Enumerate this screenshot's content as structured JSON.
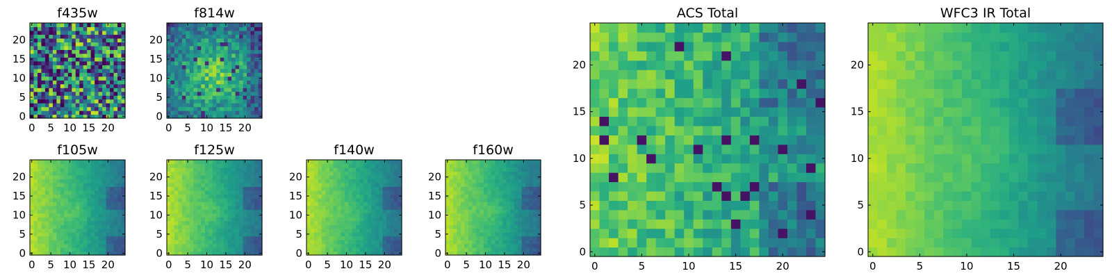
{
  "chart_data": [
    {
      "type": "heatmap",
      "title": "f435w",
      "pattern": "f435w",
      "xlim": [
        0,
        24
      ],
      "ylim": [
        0,
        24
      ],
      "xticks": [
        "0",
        "5",
        "10",
        "15",
        "20"
      ],
      "yticks": [
        "0",
        "5",
        "10",
        "15",
        "20"
      ],
      "colormap": "viridis",
      "grid": false
    },
    {
      "type": "heatmap",
      "title": "f814w",
      "pattern": "f814w",
      "xlim": [
        0,
        24
      ],
      "ylim": [
        0,
        24
      ],
      "xticks": [
        "0",
        "5",
        "10",
        "15",
        "20"
      ],
      "yticks": [
        "0",
        "5",
        "10",
        "15",
        "20"
      ],
      "colormap": "viridis",
      "grid": false
    },
    {
      "type": "heatmap",
      "title": "f105w",
      "pattern": "ir",
      "xlim": [
        0,
        24
      ],
      "ylim": [
        0,
        24
      ],
      "xticks": [
        "0",
        "5",
        "10",
        "15",
        "20"
      ],
      "yticks": [
        "0",
        "5",
        "10",
        "15",
        "20"
      ],
      "colormap": "viridis",
      "grid": false
    },
    {
      "type": "heatmap",
      "title": "f125w",
      "pattern": "ir",
      "xlim": [
        0,
        24
      ],
      "ylim": [
        0,
        24
      ],
      "xticks": [
        "0",
        "5",
        "10",
        "15",
        "20"
      ],
      "yticks": [
        "0",
        "5",
        "10",
        "15",
        "20"
      ],
      "colormap": "viridis",
      "grid": false
    },
    {
      "type": "heatmap",
      "title": "f140w",
      "pattern": "ir",
      "xlim": [
        0,
        24
      ],
      "ylim": [
        0,
        24
      ],
      "xticks": [
        "0",
        "5",
        "10",
        "15",
        "20"
      ],
      "yticks": [
        "0",
        "5",
        "10",
        "15",
        "20"
      ],
      "colormap": "viridis",
      "grid": false
    },
    {
      "type": "heatmap",
      "title": "f160w",
      "pattern": "ir",
      "xlim": [
        0,
        24
      ],
      "ylim": [
        0,
        24
      ],
      "xticks": [
        "0",
        "5",
        "10",
        "15",
        "20"
      ],
      "yticks": [
        "0",
        "5",
        "10",
        "15",
        "20"
      ],
      "colormap": "viridis",
      "grid": false
    },
    {
      "type": "heatmap",
      "title": "ACS Total",
      "pattern": "acs",
      "xlim": [
        0,
        24
      ],
      "ylim": [
        0,
        24
      ],
      "xticks": [
        "0",
        "5",
        "10",
        "15",
        "20"
      ],
      "yticks": [
        "0",
        "5",
        "10",
        "15",
        "20"
      ],
      "colormap": "viridis",
      "grid": false
    },
    {
      "type": "heatmap",
      "title": "WFC3 IR Total",
      "pattern": "ir",
      "xlim": [
        0,
        24
      ],
      "ylim": [
        0,
        24
      ],
      "xticks": [
        "0",
        "5",
        "10",
        "15",
        "20"
      ],
      "yticks": [
        "0",
        "5",
        "10",
        "15",
        "20"
      ],
      "colormap": "viridis",
      "grid": false
    }
  ]
}
